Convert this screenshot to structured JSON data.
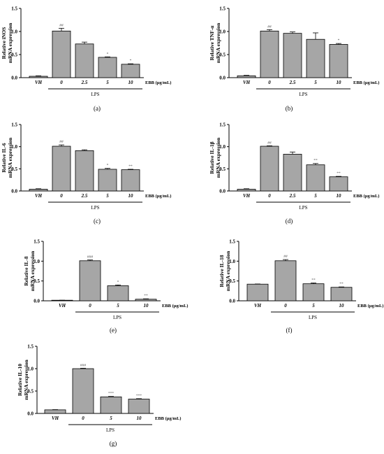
{
  "chart_data": [
    {
      "type": "bar",
      "panel_label": "(a)",
      "ylabel_line1": "Relative iNOS",
      "ylabel_line2": "mRNA expression",
      "ylim": [
        0,
        1.5
      ],
      "yticks": [
        "0.0",
        "0.5",
        "1.0",
        "1.5"
      ],
      "categories": [
        "VH",
        "0",
        "2.5",
        "5",
        "10"
      ],
      "values": [
        0.03,
        1.01,
        0.73,
        0.44,
        0.29
      ],
      "errors": [
        0.01,
        0.06,
        0.04,
        0.01,
        0.01
      ],
      "significance": [
        "",
        "##",
        "",
        "*",
        "*"
      ],
      "unit_label": "EBB (μg/mL)",
      "group_label": "LPS",
      "group_start": 1
    },
    {
      "type": "bar",
      "panel_label": "(b)",
      "ylabel_line1": "Relative TNF-α",
      "ylabel_line2": "mRNA expression",
      "ylim": [
        0,
        1.5
      ],
      "yticks": [
        "0.0",
        "0.5",
        "1.0",
        "1.5"
      ],
      "categories": [
        "VH",
        "0",
        "2.5",
        "5",
        "10"
      ],
      "values": [
        0.04,
        1.01,
        0.96,
        0.83,
        0.72
      ],
      "errors": [
        0.01,
        0.03,
        0.03,
        0.14,
        0.02
      ],
      "significance": [
        "",
        "##",
        "",
        "",
        "*"
      ],
      "unit_label": "EBB (μg/mL)",
      "group_label": "LPS",
      "group_start": 1
    },
    {
      "type": "bar",
      "panel_label": "(c)",
      "ylabel_line1": "Relative IL-6",
      "ylabel_line2": "mRNA expression",
      "ylim": [
        0,
        1.5
      ],
      "yticks": [
        "0.0",
        "0.5",
        "1.0",
        "1.5"
      ],
      "categories": [
        "VH",
        "0",
        "2.5",
        "5",
        "10"
      ],
      "values": [
        0.04,
        1.01,
        0.91,
        0.49,
        0.48
      ],
      "errors": [
        0.01,
        0.03,
        0.02,
        0.02,
        0.01
      ],
      "significance": [
        "",
        "##",
        "",
        "*",
        "**"
      ],
      "unit_label": "EBB (μg/mL)",
      "group_label": "LPS",
      "group_start": 1
    },
    {
      "type": "bar",
      "panel_label": "(d)",
      "ylabel_line1": "Relative IL-1β",
      "ylabel_line2": "mRNA expression",
      "ylim": [
        0,
        1.5
      ],
      "yticks": [
        "0.0",
        "0.5",
        "1.0",
        "1.5"
      ],
      "categories": [
        "VH",
        "0",
        "2.5",
        "5",
        "10"
      ],
      "values": [
        0.04,
        1.01,
        0.83,
        0.59,
        0.32
      ],
      "errors": [
        0.01,
        0.01,
        0.05,
        0.03,
        0.01
      ],
      "significance": [
        "",
        "##",
        "",
        "**",
        "**"
      ],
      "unit_label": "EBB (μg/mL)",
      "group_label": "LPS",
      "group_start": 1
    },
    {
      "type": "bar",
      "panel_label": "(e)",
      "ylabel_line1": "Relative IL-8",
      "ylabel_line2": "mRNA expression",
      "ylim": [
        0,
        1.5
      ],
      "yticks": [
        "0.0",
        "0.5",
        "1.0",
        "1.5"
      ],
      "categories": [
        "VH",
        "0",
        "5",
        "10"
      ],
      "values": [
        0.01,
        1.01,
        0.38,
        0.04
      ],
      "errors": [
        0.005,
        0.02,
        0.02,
        0.01
      ],
      "significance": [
        "",
        "###",
        "*",
        "**"
      ],
      "unit_label": "EBB (μg/mL)",
      "group_label": "LPS",
      "group_start": 1
    },
    {
      "type": "bar",
      "panel_label": "(f)",
      "ylabel_line1": "Relative IL-18",
      "ylabel_line2": "mRNA expression",
      "ylim": [
        0,
        1.5
      ],
      "yticks": [
        "0.0",
        "0.5",
        "1.0",
        "1.5"
      ],
      "categories": [
        "VH",
        "0",
        "5",
        "10"
      ],
      "values": [
        0.42,
        1.01,
        0.43,
        0.34
      ],
      "errors": [
        0.005,
        0.03,
        0.02,
        0.01
      ],
      "significance": [
        "",
        "##",
        "**",
        "**"
      ],
      "unit_label": "EBB (μg/mL)",
      "group_label": "LPS",
      "group_start": 1
    },
    {
      "type": "bar",
      "panel_label": "(g)",
      "ylabel_line1": "Relative IL-10",
      "ylabel_line2": "mRNA expression",
      "ylim": [
        0,
        1.5
      ],
      "yticks": [
        "0.0",
        "0.5",
        "1.0",
        "1.5"
      ],
      "categories": [
        "VH",
        "0",
        "5",
        "10"
      ],
      "values": [
        0.08,
        1.0,
        0.37,
        0.32
      ],
      "errors": [
        0.005,
        0.01,
        0.01,
        0.01
      ],
      "significance": [
        "",
        "###",
        "***",
        "***"
      ],
      "unit_label": "EBB (μg/mL)",
      "group_label": "LPS",
      "group_start": 1
    }
  ],
  "colors": {
    "bar_fill": "#a6a6a6",
    "bar_stroke": "#000000",
    "axis": "#000000",
    "significance": "#555555"
  }
}
